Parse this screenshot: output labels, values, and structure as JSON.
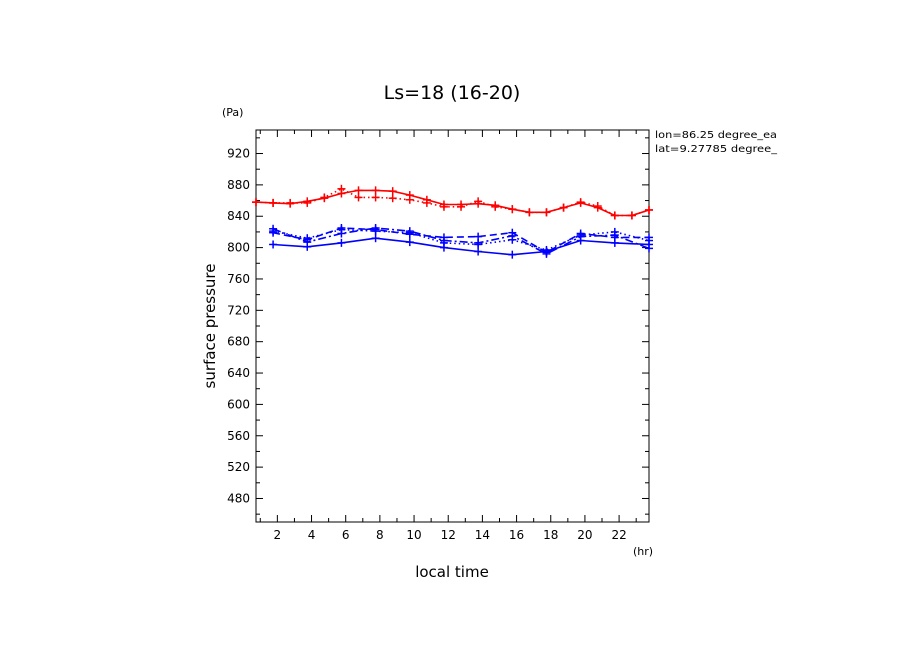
{
  "chart_data": {
    "type": "line",
    "title": "Ls=18 (16-20)",
    "xlabel": "local time",
    "ylabel": "surface pressure",
    "x_unit": "(hr)",
    "y_unit": "(Pa)",
    "annotations": [
      "lon=86.25 degree_ea",
      "lat=9.27785 degree_"
    ],
    "xlim": [
      0.75,
      23.75
    ],
    "ylim": [
      450,
      950
    ],
    "xticks": [
      2,
      4,
      6,
      8,
      10,
      12,
      14,
      16,
      18,
      20,
      22
    ],
    "xtick_labels": [
      "2",
      "4",
      "6",
      "8",
      "10",
      "12",
      "14",
      "16",
      "18",
      "20",
      "22"
    ],
    "yticks": [
      480,
      520,
      560,
      600,
      640,
      680,
      720,
      760,
      800,
      840,
      880,
      920
    ],
    "ytick_labels": [
      "480",
      "520",
      "560",
      "600",
      "640",
      "680",
      "720",
      "760",
      "800",
      "840",
      "880",
      "920"
    ],
    "series": [
      {
        "name": "red-solid",
        "color": "#ff0000",
        "style": "solid",
        "x": [
          0.75,
          1.75,
          2.75,
          3.75,
          4.75,
          5.75,
          6.75,
          7.75,
          8.75,
          9.75,
          10.75,
          11.75,
          12.75,
          13.75,
          14.75,
          15.75,
          16.75,
          17.75,
          18.75,
          19.75,
          20.75,
          21.75,
          22.75,
          23.75
        ],
        "y": [
          858,
          857,
          856,
          859,
          863,
          869,
          873,
          873,
          872,
          867,
          861,
          855,
          855,
          856,
          854,
          849,
          845,
          845,
          851,
          857,
          851,
          841,
          841,
          848
        ]
      },
      {
        "name": "red-dotted",
        "color": "#ff0000",
        "style": "dotted",
        "x": [
          0.75,
          1.75,
          2.75,
          3.75,
          4.75,
          5.75,
          6.75,
          7.75,
          8.75,
          9.75,
          10.75,
          11.75,
          12.75,
          13.75,
          14.75,
          15.75,
          16.75,
          17.75,
          18.75,
          19.75,
          20.75,
          21.75,
          22.75,
          23.75
        ],
        "y": [
          858,
          857,
          857,
          857,
          864,
          875,
          864,
          864,
          863,
          861,
          857,
          852,
          852,
          859,
          852,
          849,
          845,
          845,
          851,
          858,
          853,
          841,
          841,
          848
        ]
      },
      {
        "name": "blue-solid",
        "color": "#0000ff",
        "style": "solid",
        "x": [
          1.75,
          3.75,
          5.75,
          7.75,
          9.75,
          11.75,
          13.75,
          15.75,
          17.75,
          19.75,
          21.75,
          23.75
        ],
        "y": [
          804,
          801,
          806,
          812,
          807,
          800,
          795,
          791,
          795,
          809,
          806,
          804
        ]
      },
      {
        "name": "blue-dashed",
        "color": "#0000ff",
        "style": "dashed",
        "x": [
          1.75,
          3.75,
          5.75,
          7.75,
          9.75,
          11.75,
          13.75,
          15.75,
          17.75,
          19.75,
          21.75,
          23.75
        ],
        "y": [
          819,
          810,
          825,
          823,
          817,
          813,
          814,
          819,
          794,
          818,
          813,
          813
        ]
      },
      {
        "name": "blue-dotted",
        "color": "#0000ff",
        "style": "dotted",
        "x": [
          1.75,
          3.75,
          5.75,
          7.75,
          9.75,
          11.75,
          13.75,
          15.75,
          17.75,
          19.75,
          21.75,
          23.75
        ],
        "y": [
          821,
          812,
          823,
          821,
          819,
          806,
          804,
          810,
          797,
          816,
          820,
          809
        ]
      },
      {
        "name": "blue-dash-dot",
        "color": "#0000ff",
        "style": "dashdot",
        "x": [
          1.75,
          3.75,
          5.75,
          7.75,
          9.75,
          11.75,
          13.75,
          15.75,
          17.75,
          19.75,
          21.75,
          23.75
        ],
        "y": [
          824,
          807,
          818,
          825,
          821,
          809,
          806,
          815,
          792,
          814,
          816,
          799
        ]
      }
    ]
  }
}
